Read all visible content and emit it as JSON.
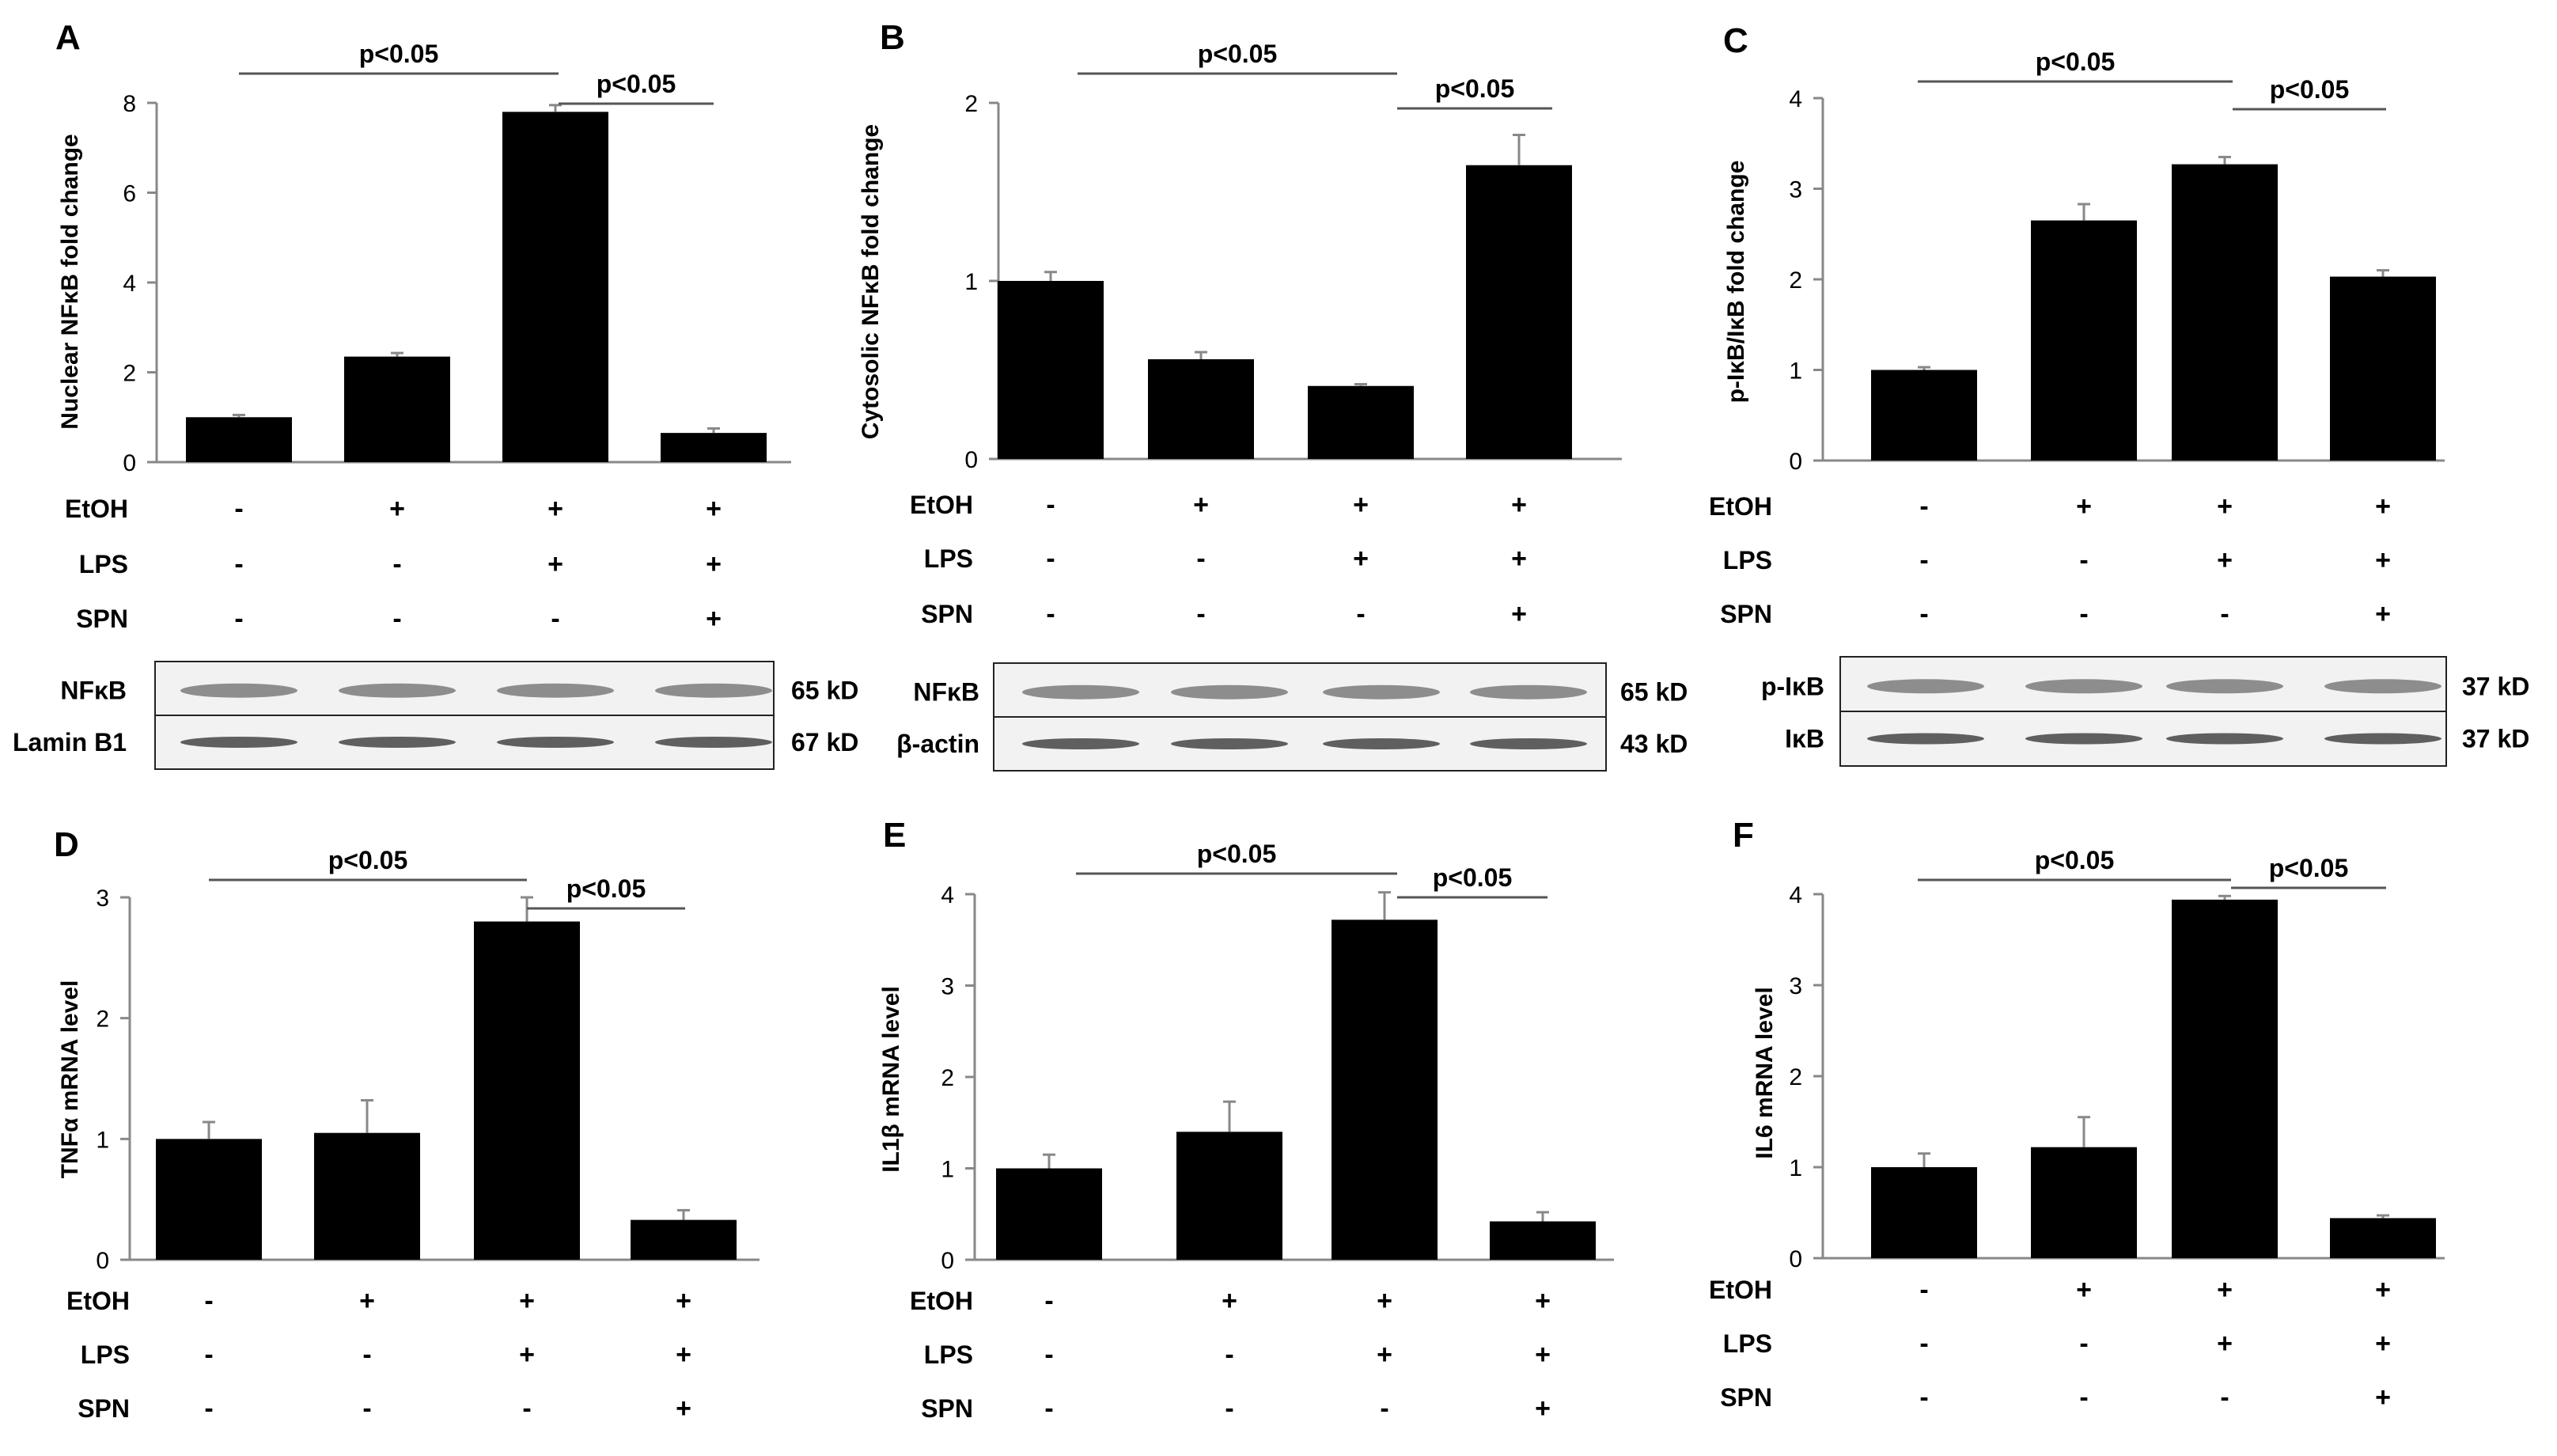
{
  "figure": {
    "treatment_rows": [
      "EtOH",
      "LPS",
      "SPN"
    ],
    "treatment_signs": [
      [
        "-",
        "+",
        "+",
        "+"
      ],
      [
        "-",
        "-",
        "+",
        "+"
      ],
      [
        "-",
        "-",
        "-",
        "+"
      ]
    ]
  },
  "chart_data": [
    {
      "panel": "A",
      "type": "bar",
      "categories": [
        "-/-/-",
        "+/-/-",
        "+/+/-",
        "+/+/+"
      ],
      "values": [
        1.0,
        2.35,
        7.8,
        0.65
      ],
      "errors": [
        0.05,
        0.08,
        0.15,
        0.1
      ],
      "title": "",
      "xlabel": "",
      "ylabel": "Nuclear NFκB fold change",
      "ylim": [
        0,
        8
      ],
      "yticks": [
        "0",
        "2",
        "4",
        "6",
        "8"
      ],
      "significance": [
        {
          "label": "p<0.05",
          "from": 0,
          "to": 2
        },
        {
          "label": "p<0.05",
          "from": 2,
          "to": 3
        }
      ],
      "blots": [
        {
          "name": "NFκB",
          "size": "65 kD"
        },
        {
          "name": "Lamin B1",
          "size": "67 kD"
        }
      ]
    },
    {
      "panel": "B",
      "type": "bar",
      "categories": [
        "-/-/-",
        "+/-/-",
        "+/+/-",
        "+/+/+"
      ],
      "values": [
        1.0,
        0.56,
        0.41,
        1.65
      ],
      "errors": [
        0.05,
        0.04,
        0.01,
        0.17
      ],
      "title": "",
      "xlabel": "",
      "ylabel": "Cytosolic NFκB fold change",
      "ylim": [
        0,
        2
      ],
      "yticks": [
        "0",
        "1",
        "2"
      ],
      "significance": [
        {
          "label": "p<0.05",
          "from": 0,
          "to": 2
        },
        {
          "label": "p<0.05",
          "from": 2,
          "to": 3
        }
      ],
      "blots": [
        {
          "name": "NFκB",
          "size": "65 kD"
        },
        {
          "name": "β-actin",
          "size": "43 kD"
        }
      ]
    },
    {
      "panel": "C",
      "type": "bar",
      "categories": [
        "-/-/-",
        "+/-/-",
        "+/+/-",
        "+/+/+"
      ],
      "values": [
        1.0,
        2.65,
        3.27,
        2.03
      ],
      "errors": [
        0.03,
        0.18,
        0.08,
        0.07
      ],
      "title": "",
      "xlabel": "",
      "ylabel": "p-IκB/IκB fold change",
      "ylim": [
        0,
        4
      ],
      "yticks": [
        "0",
        "1",
        "2",
        "3",
        "4"
      ],
      "significance": [
        {
          "label": "p<0.05",
          "from": 0,
          "to": 2
        },
        {
          "label": "p<0.05",
          "from": 2,
          "to": 3
        }
      ],
      "blots": [
        {
          "name": "p-IκB",
          "size": "37 kD"
        },
        {
          "name": "IκB",
          "size": "37 kD"
        }
      ]
    },
    {
      "panel": "D",
      "type": "bar",
      "categories": [
        "-/-/-",
        "+/-/-",
        "+/+/-",
        "+/+/+"
      ],
      "values": [
        1.0,
        1.05,
        2.8,
        0.33
      ],
      "errors": [
        0.14,
        0.27,
        0.2,
        0.08
      ],
      "title": "",
      "xlabel": "",
      "ylabel": "TNFα mRNA level",
      "ylim": [
        0,
        3
      ],
      "yticks": [
        "0",
        "1",
        "2",
        "3"
      ],
      "significance": [
        {
          "label": "p<0.05",
          "from": 0,
          "to": 2
        },
        {
          "label": "p<0.05",
          "from": 2,
          "to": 3
        }
      ]
    },
    {
      "panel": "E",
      "type": "bar",
      "categories": [
        "-/-/-",
        "+/-/-",
        "+/+/-",
        "+/+/+"
      ],
      "values": [
        1.0,
        1.4,
        3.72,
        0.42
      ],
      "errors": [
        0.15,
        0.33,
        0.3,
        0.1
      ],
      "title": "",
      "xlabel": "",
      "ylabel": "IL1β mRNA level",
      "ylim": [
        0,
        4
      ],
      "yticks": [
        "0",
        "1",
        "2",
        "3",
        "4"
      ],
      "significance": [
        {
          "label": "p<0.05",
          "from": 0,
          "to": 2
        },
        {
          "label": "p<0.05",
          "from": 2,
          "to": 3
        }
      ]
    },
    {
      "panel": "F",
      "type": "bar",
      "categories": [
        "-/-/-",
        "+/-/-",
        "+/+/-",
        "+/+/+"
      ],
      "values": [
        1.0,
        1.22,
        3.94,
        0.44
      ],
      "errors": [
        0.15,
        0.33,
        0.04,
        0.03
      ],
      "title": "",
      "xlabel": "",
      "ylabel": "IL6 mRNA level",
      "ylim": [
        0,
        4
      ],
      "yticks": [
        "0",
        "1",
        "2",
        "3",
        "4"
      ],
      "significance": [
        {
          "label": "p<0.05",
          "from": 0,
          "to": 2
        },
        {
          "label": "p<0.05",
          "from": 2,
          "to": 3
        }
      ]
    }
  ]
}
